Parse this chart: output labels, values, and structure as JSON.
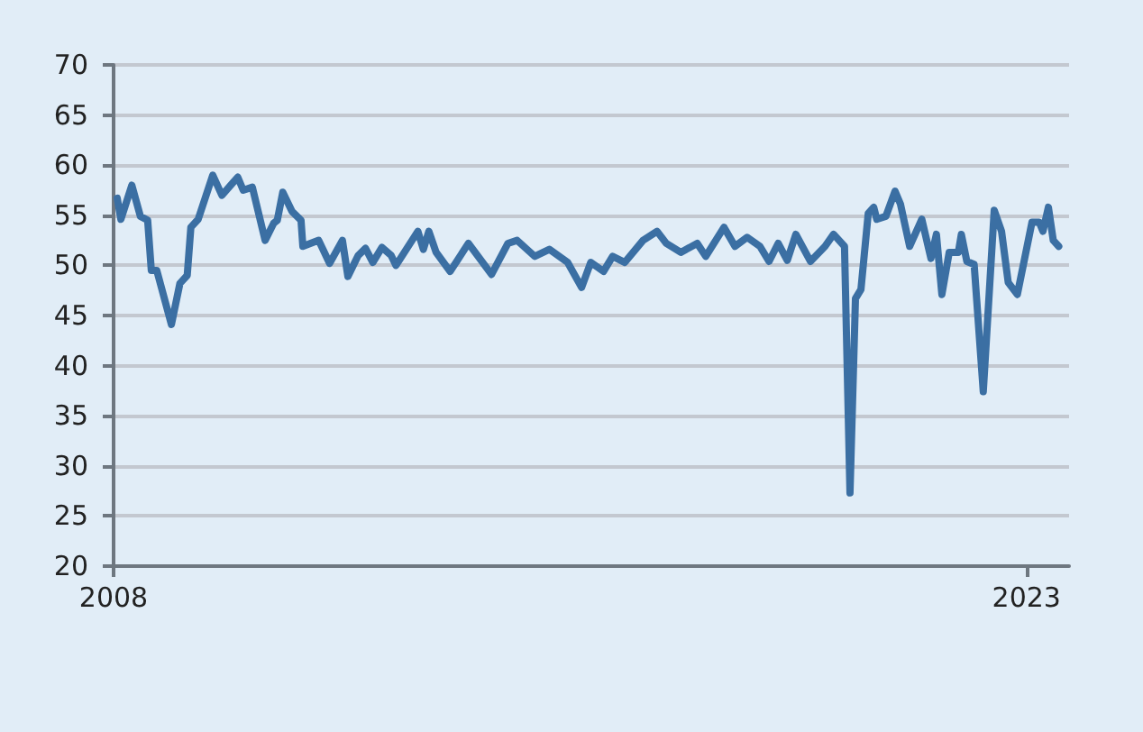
{
  "chart_data": {
    "type": "line",
    "color": "#3b6fa3",
    "x": [
      2008.06,
      2008.12,
      2008.3,
      2008.44,
      2008.56,
      2008.62,
      2008.71,
      2008.95,
      2009.09,
      2009.21,
      2009.27,
      2009.39,
      2009.63,
      2009.78,
      2010.04,
      2010.13,
      2010.28,
      2010.49,
      2010.63,
      2010.69,
      2010.78,
      2010.93,
      2011.08,
      2011.11,
      2011.37,
      2011.55,
      2011.76,
      2011.85,
      2012.02,
      2012.14,
      2012.26,
      2012.41,
      2012.56,
      2012.64,
      2013.0,
      2013.09,
      2013.18,
      2013.3,
      2013.53,
      2013.83,
      2014.21,
      2014.48,
      2014.63,
      2014.92,
      2015.16,
      2015.46,
      2015.69,
      2015.84,
      2016.05,
      2016.2,
      2016.4,
      2016.7,
      2016.93,
      2017.08,
      2017.32,
      2017.59,
      2017.73,
      2018.03,
      2018.21,
      2018.41,
      2018.62,
      2018.77,
      2018.92,
      2019.07,
      2019.21,
      2019.45,
      2019.69,
      2019.83,
      2020.01,
      2020.1,
      2020.19,
      2020.28,
      2020.4,
      2020.49,
      2020.54,
      2020.69,
      2020.84,
      2020.93,
      2021.08,
      2021.28,
      2021.43,
      2021.52,
      2021.61,
      2021.73,
      2021.88,
      2021.93,
      2022.02,
      2022.14,
      2022.29,
      2022.47,
      2022.59,
      2022.7,
      2022.85,
      2023.09,
      2023.21,
      2023.27,
      2023.36,
      2023.44,
      2023.53
    ],
    "values": [
      56.7,
      54.6,
      58,
      54.9,
      54.5,
      49.5,
      49.5,
      44.1,
      48.2,
      49,
      53.8,
      54.6,
      59,
      57,
      58.8,
      57.5,
      57.8,
      52.5,
      54.2,
      54.5,
      57.3,
      55.4,
      54.5,
      51.9,
      52.5,
      50.2,
      52.5,
      48.9,
      51,
      51.7,
      50.3,
      51.8,
      51,
      50,
      53.4,
      51.6,
      53.4,
      51.3,
      49.4,
      52.2,
      49.1,
      52.2,
      52.5,
      50.9,
      51.6,
      50.3,
      47.8,
      50.3,
      49.4,
      50.9,
      50.3,
      52.5,
      53.4,
      52.2,
      51.3,
      52.2,
      50.9,
      53.8,
      51.9,
      52.8,
      51.9,
      50.4,
      52.2,
      50.5,
      53.1,
      50.4,
      51.9,
      53.1,
      51.9,
      27.3,
      46.7,
      47.6,
      55.2,
      55.8,
      54.6,
      54.9,
      57.4,
      56.1,
      51.9,
      54.6,
      50.7,
      53.1,
      47.1,
      51.3,
      51.3,
      53.1,
      50.4,
      50.1,
      37.4,
      55.5,
      53.4,
      48.3,
      47.1,
      54.3,
      54.3,
      53.4,
      55.8,
      52.5,
      51.9
    ],
    "xlim": [
      2008,
      2023.7
    ],
    "xticks": [
      2008,
      2023
    ],
    "ylim": [
      20,
      70
    ],
    "yticks": [
      20,
      25,
      30,
      35,
      40,
      45,
      50,
      55,
      60,
      65,
      70
    ],
    "grid": "y",
    "marker": "none",
    "line_style": "solid"
  }
}
